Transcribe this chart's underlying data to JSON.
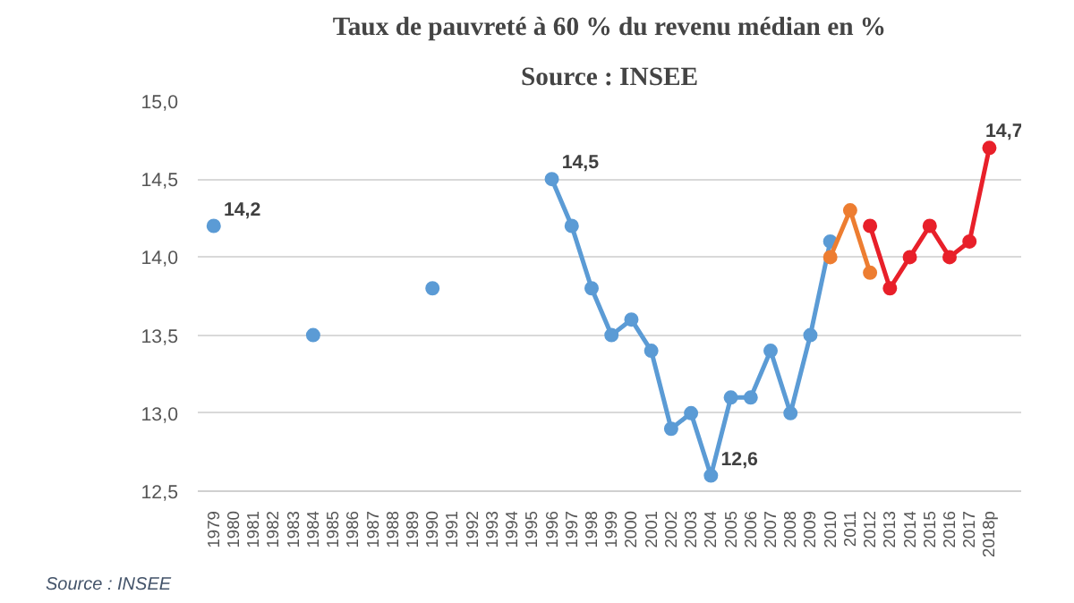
{
  "chart_data": {
    "type": "line",
    "title": "Taux de pauvreté à 60 % du revenu médian en %",
    "subtitle": "Source : INSEE",
    "annotations": [
      "Source : INSEE"
    ],
    "categories": [
      "1979",
      "1980",
      "1981",
      "1982",
      "1983",
      "1984",
      "1985",
      "1986",
      "1987",
      "1988",
      "1989",
      "1990",
      "1991",
      "1992",
      "1993",
      "1994",
      "1995",
      "1996",
      "1997",
      "1998",
      "1999",
      "2000",
      "2001",
      "2002",
      "2003",
      "2004",
      "2005",
      "2006",
      "2007",
      "2008",
      "2009",
      "2010",
      "2011",
      "2012",
      "2013",
      "2014",
      "2015",
      "2016",
      "2017",
      "2018p"
    ],
    "series": [
      {
        "color": "#5b9bd5",
        "values": [
          14.2,
          null,
          null,
          null,
          null,
          13.5,
          null,
          null,
          null,
          null,
          null,
          13.8,
          null,
          null,
          null,
          null,
          null,
          14.5,
          14.2,
          13.8,
          13.5,
          13.6,
          13.4,
          12.9,
          13.0,
          12.6,
          13.1,
          13.1,
          13.4,
          13.0,
          13.5,
          14.1,
          null,
          null,
          null,
          null,
          null,
          null,
          null,
          null
        ],
        "value_labels": [
          "14,2",
          null,
          null,
          null,
          null,
          null,
          null,
          null,
          null,
          null,
          null,
          null,
          null,
          null,
          null,
          null,
          null,
          "14,5",
          null,
          null,
          null,
          null,
          null,
          null,
          null,
          "12,6",
          null,
          null,
          null,
          null,
          null,
          null,
          null,
          null,
          null,
          null,
          null,
          null,
          null,
          null
        ]
      },
      {
        "color": "#ed7d31",
        "values": [
          null,
          null,
          null,
          null,
          null,
          null,
          null,
          null,
          null,
          null,
          null,
          null,
          null,
          null,
          null,
          null,
          null,
          null,
          null,
          null,
          null,
          null,
          null,
          null,
          null,
          null,
          null,
          null,
          null,
          null,
          null,
          14.0,
          14.3,
          13.9,
          null,
          null,
          null,
          null,
          null,
          null
        ]
      },
      {
        "color": "#e8202a",
        "values": [
          null,
          null,
          null,
          null,
          null,
          null,
          null,
          null,
          null,
          null,
          null,
          null,
          null,
          null,
          null,
          null,
          null,
          null,
          null,
          null,
          null,
          null,
          null,
          null,
          null,
          null,
          null,
          null,
          null,
          null,
          null,
          null,
          null,
          14.2,
          13.8,
          14.0,
          14.2,
          14.0,
          14.1,
          14.7
        ],
        "value_labels": [
          null,
          null,
          null,
          null,
          null,
          null,
          null,
          null,
          null,
          null,
          null,
          null,
          null,
          null,
          null,
          null,
          null,
          null,
          null,
          null,
          null,
          null,
          null,
          null,
          null,
          null,
          null,
          null,
          null,
          null,
          null,
          null,
          null,
          null,
          null,
          null,
          null,
          null,
          null,
          "14,7"
        ]
      }
    ],
    "ylim": [
      12.5,
      15.0
    ],
    "yticks": [
      {
        "value": 12.5,
        "label": "12,5"
      },
      {
        "value": 13.0,
        "label": "13,0"
      },
      {
        "value": 13.5,
        "label": "13,5"
      },
      {
        "value": 14.0,
        "label": "14,0"
      },
      {
        "value": 14.5,
        "label": "14,5"
      },
      {
        "value": 15.0,
        "label": "15,0"
      }
    ],
    "grid": "y",
    "marker": "circle",
    "line_style": "solid"
  }
}
